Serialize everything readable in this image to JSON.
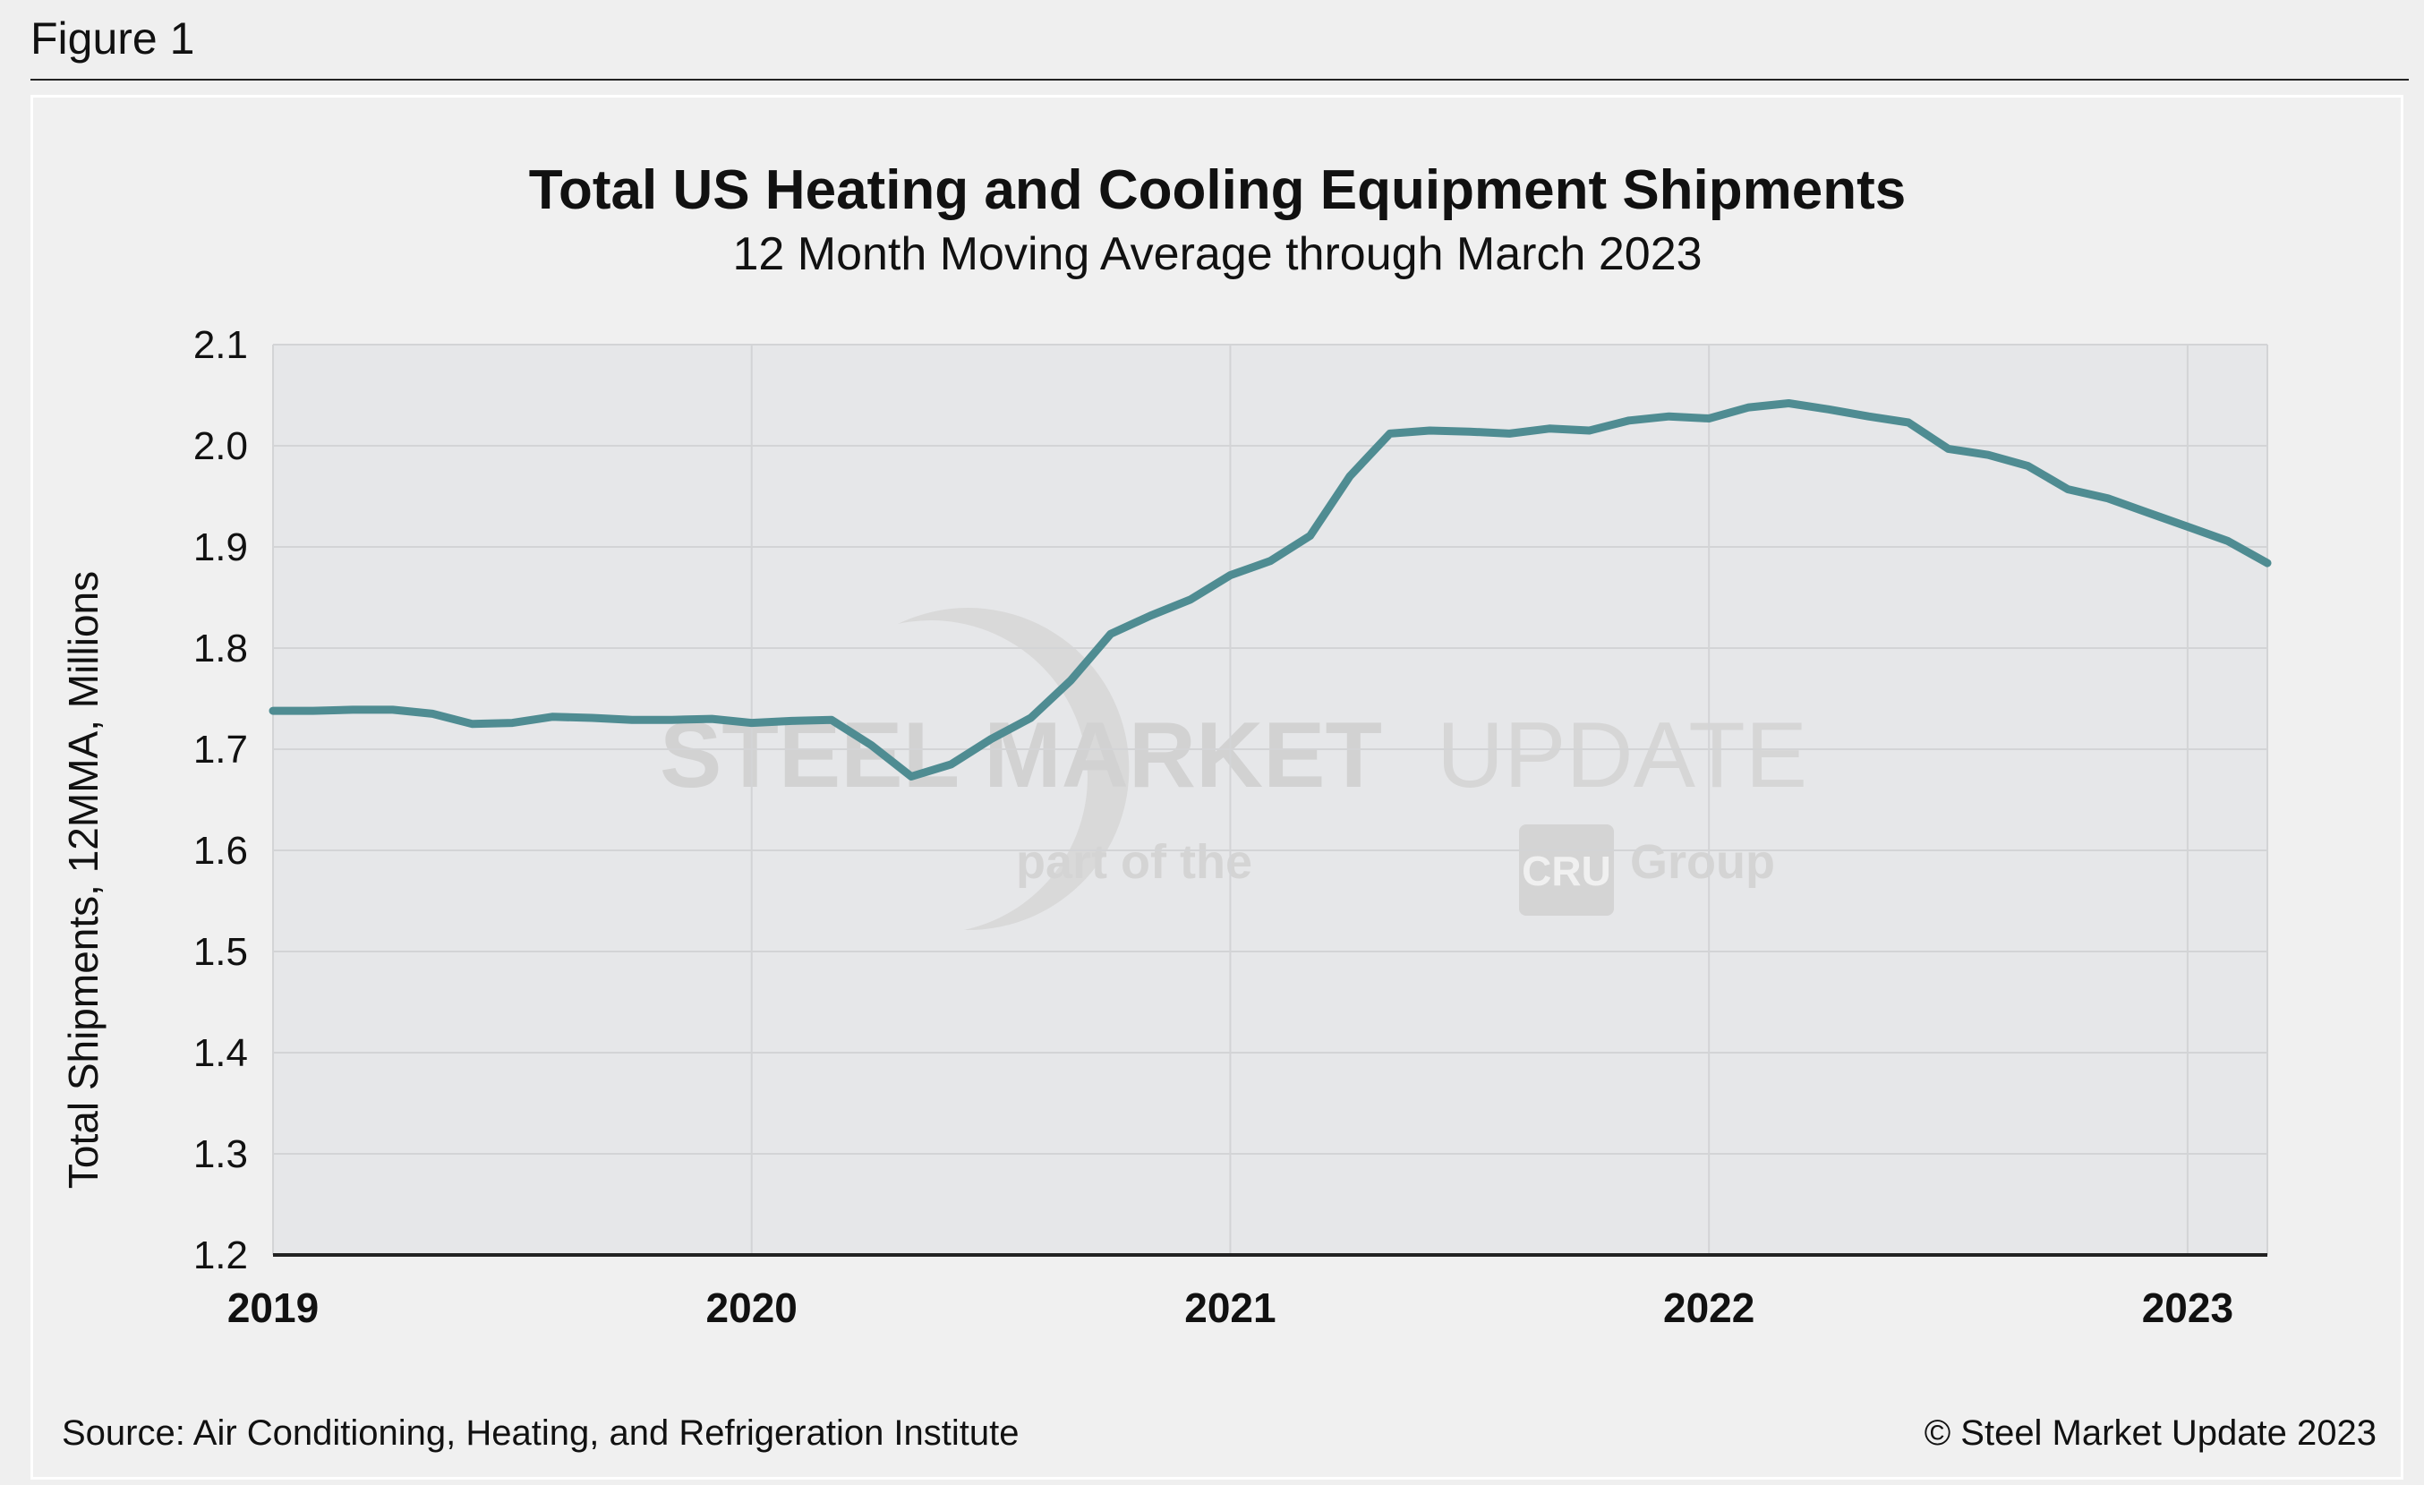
{
  "figure_label": "Figure 1",
  "watermark": {
    "brand_bold": "STEEL MARKET",
    "brand_light": "UPDATE",
    "tagline_pre": "part of the",
    "tagline_logo": "CRU",
    "tagline_post": "Group"
  },
  "footer": {
    "source": "Source: Air Conditioning, Heating, and Refrigeration Institute",
    "copyright": "© Steel Market Update 2023"
  },
  "colors": {
    "line": "#4f8c92",
    "plot_bg": "#e6e7e9",
    "grid": "#d3d4d6",
    "axis": "#222222"
  },
  "chart_data": {
    "type": "line",
    "title": "Total US Heating and Cooling Equipment Shipments",
    "subtitle": "12 Month Moving Average through March 2023",
    "xlabel": "",
    "ylabel": "Total Shipments, 12MMA, Millions",
    "ylim": [
      1.2,
      2.1
    ],
    "yticks": [
      "1.2",
      "1.3",
      "1.4",
      "1.5",
      "1.6",
      "1.7",
      "1.8",
      "1.9",
      "2.0",
      "2.1"
    ],
    "xticks": [
      "2019",
      "2020",
      "2021",
      "2022",
      "2023"
    ],
    "x_start": "2019-01",
    "x_end": "2023-03",
    "months_per_year": 12,
    "grid": true,
    "series": [
      {
        "name": "Total US Heating and Cooling Equipment Shipments (12MMA)",
        "values": [
          1.738,
          1.738,
          1.739,
          1.739,
          1.735,
          1.725,
          1.726,
          1.732,
          1.731,
          1.729,
          1.729,
          1.73,
          1.726,
          1.728,
          1.729,
          1.704,
          1.673,
          1.685,
          1.71,
          1.731,
          1.768,
          1.814,
          1.832,
          1.848,
          1.872,
          1.886,
          1.911,
          1.97,
          2.012,
          2.015,
          2.014,
          2.012,
          2.017,
          2.015,
          2.025,
          2.029,
          2.027,
          2.038,
          2.042,
          2.036,
          2.029,
          2.023,
          1.997,
          1.991,
          1.98,
          1.957,
          1.948,
          1.934,
          1.92,
          1.906,
          1.884
        ]
      }
    ]
  }
}
